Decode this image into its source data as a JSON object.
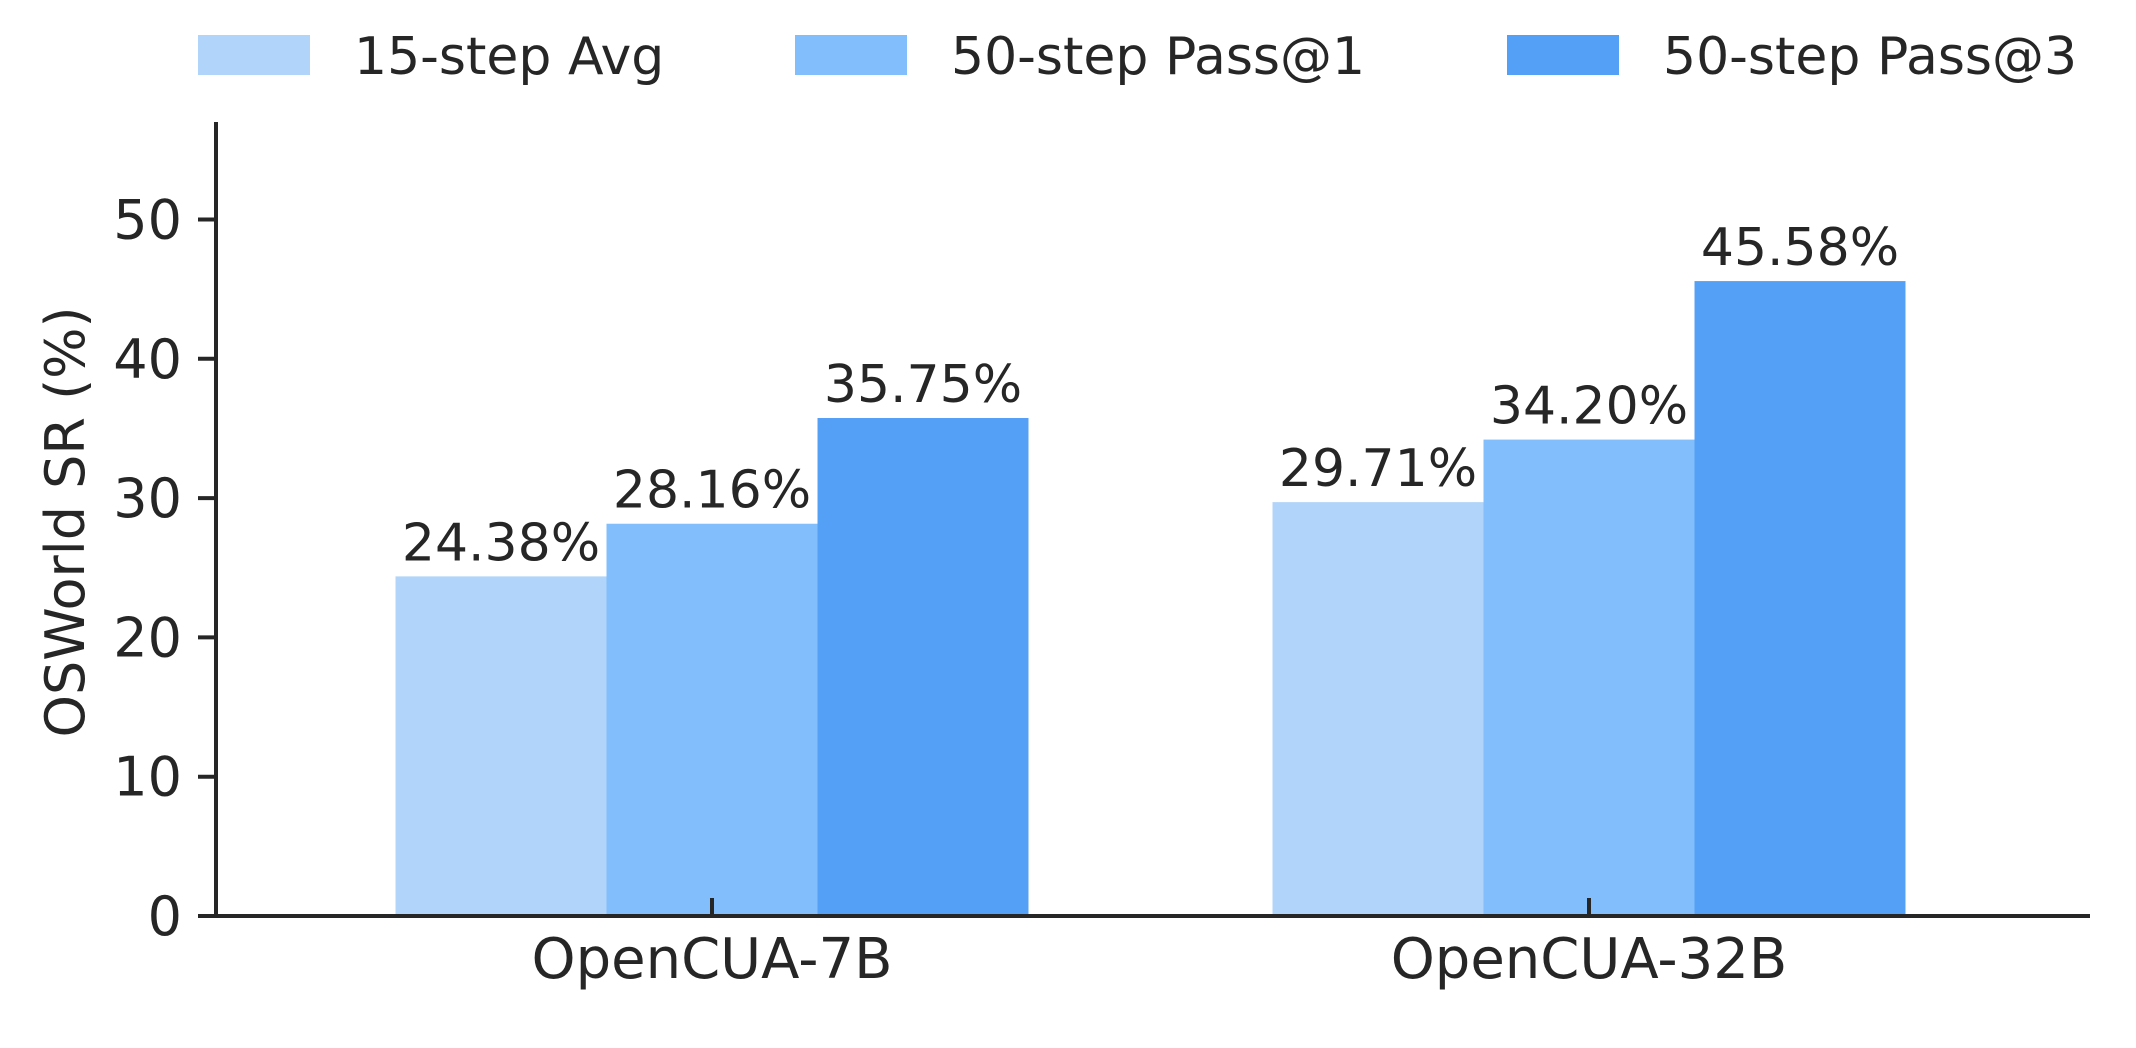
{
  "chart_data": {
    "type": "bar",
    "title": "",
    "xlabel": "",
    "ylabel": "OSWorld SR (%)",
    "ylim": [
      0,
      57
    ],
    "yticks": [
      0,
      10,
      20,
      30,
      40,
      50
    ],
    "grid": false,
    "legend_position": "top",
    "categories": [
      "OpenCUA-7B",
      "OpenCUA-32B"
    ],
    "series": [
      {
        "name": "15-step Avg",
        "color": "#b0d4fa",
        "values": [
          24.38,
          29.71
        ],
        "labels": [
          "24.38%",
          "29.71%"
        ]
      },
      {
        "name": "50-step Pass@1",
        "color": "#82befb",
        "values": [
          28.16,
          34.2
        ],
        "labels": [
          "28.16%",
          "34.20%"
        ]
      },
      {
        "name": "50-step Pass@3",
        "color": "#55a0f7",
        "values": [
          35.75,
          45.58
        ],
        "labels": [
          "35.75%",
          "45.58%"
        ]
      }
    ]
  }
}
